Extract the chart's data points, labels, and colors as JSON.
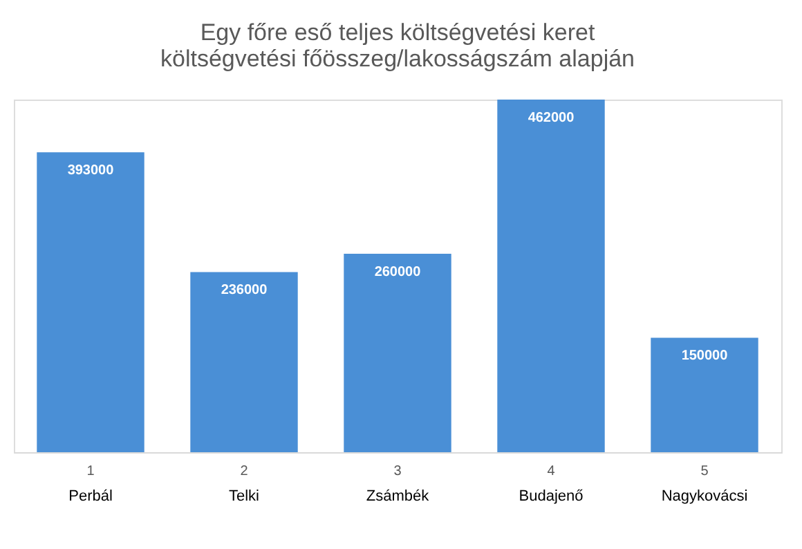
{
  "chart_data": {
    "type": "bar",
    "title": [
      "Egy főre eső teljes költségvetési keret",
      "költségvetési főösszeg/lakosságszám alapján"
    ],
    "categories": [
      "1",
      "2",
      "3",
      "4",
      "5"
    ],
    "values": [
      393000,
      236000,
      260000,
      462000,
      150000
    ],
    "color": "#4a8fd6",
    "data_labels": true,
    "grid": false,
    "annotations": [
      "Perbál",
      "Telki",
      "Zsámbék",
      "Budajenő",
      "Nagykovácsi"
    ]
  }
}
